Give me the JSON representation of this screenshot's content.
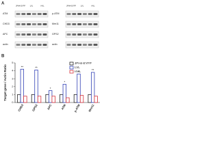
{
  "panel_a": {
    "label": "A",
    "left_headers": [
      "JPH4-EYFP",
      "LVL",
      "HVL"
    ],
    "right_headers": [
      "JPH4-EYFP",
      "LVL",
      "HVL"
    ],
    "left_rows": [
      "ATM",
      "CHD3",
      "APC",
      "actin"
    ],
    "right_rows": [
      "p-ATM",
      "Mre11",
      "GPS2",
      "actin"
    ]
  },
  "chart_data": {
    "type": "bar",
    "label": "B",
    "y_label": "Target gene / Actin Ratio",
    "categories": [
      "CHD3",
      "GPS2",
      "APC",
      "ATM",
      "p-ATM",
      "Mre11"
    ],
    "series": [
      {
        "name": "JPH4-EYFP",
        "color": "#222222",
        "values": [
          1,
          1,
          1,
          1,
          1,
          1
        ]
      },
      {
        "name": "LVL",
        "color": "#2f3fb5",
        "values": [
          4.2,
          4.1,
          1.5,
          2.3,
          3.6,
          3.8
        ]
      },
      {
        "name": "HVL",
        "color": "#d4303a",
        "values": [
          0.8,
          0.8,
          0.8,
          0.6,
          0.9,
          0.8
        ]
      }
    ],
    "annotations": [
      "**",
      "**",
      "*",
      "*",
      "**",
      "**"
    ],
    "ylim": [
      0,
      5
    ],
    "yticks": [
      0,
      1,
      2,
      3,
      4,
      5
    ],
    "legend": "upper right"
  }
}
